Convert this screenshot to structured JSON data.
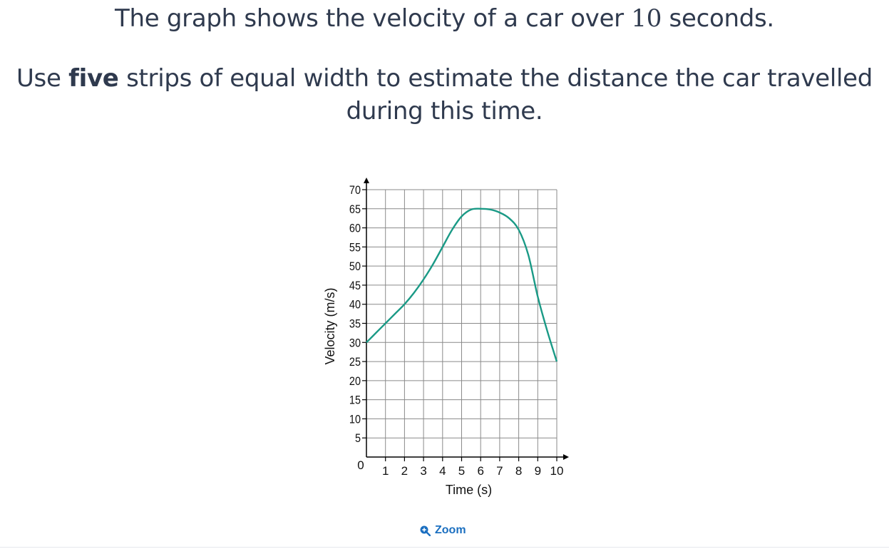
{
  "question": {
    "line1_before": "The graph shows the velocity of a car over ",
    "line1_number": "10",
    "line1_after": " seconds.",
    "line2_before": "Use ",
    "line2_bold": "five",
    "line2_after": " strips of equal width to estimate the distance the car travelled during this time."
  },
  "zoom": {
    "label": "Zoom",
    "icon": "zoom-in-icon"
  },
  "colors": {
    "curve": "#1a9a86",
    "grid": "#8a8a8a",
    "axis": "#000000",
    "link": "#1b6fc0"
  },
  "chart_data": {
    "type": "line",
    "xlabel": "Time (s)",
    "ylabel": "Velocity (m/s)",
    "xlim": [
      0,
      10
    ],
    "ylim": [
      0,
      70
    ],
    "x_ticks": [
      "1",
      "2",
      "3",
      "4",
      "5",
      "6",
      "7",
      "8",
      "9",
      "10"
    ],
    "y_ticks": [
      "5",
      "10",
      "15",
      "20",
      "25",
      "30",
      "35",
      "40",
      "45",
      "50",
      "55",
      "60",
      "65",
      "70"
    ],
    "origin_label": "0",
    "grid": true,
    "series": [
      {
        "x": [
          0,
          0.5,
          1,
          1.5,
          2,
          2.5,
          3,
          3.5,
          4,
          4.5,
          5,
          5.5,
          6,
          6.5,
          7,
          7.5,
          8,
          8.5,
          9,
          9.5,
          10
        ],
        "y": [
          30,
          32.5,
          35,
          37.5,
          40,
          43,
          46.5,
          50.5,
          55,
          59.5,
          63,
          64.8,
          65,
          64.8,
          64,
          62.5,
          59.5,
          53,
          42,
          33,
          25
        ]
      }
    ]
  }
}
